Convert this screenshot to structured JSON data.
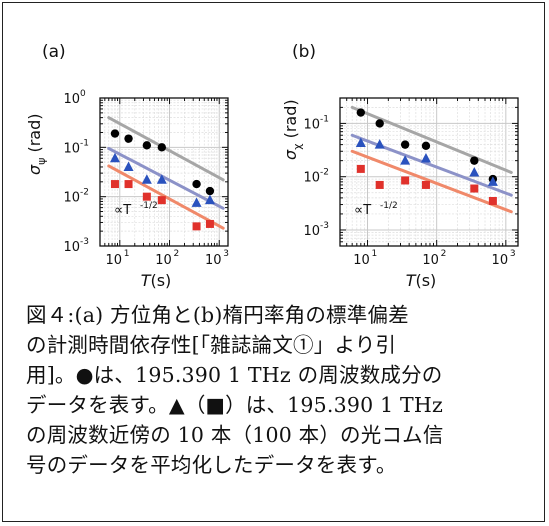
{
  "chart_data": [
    {
      "type": "scatter",
      "panel_label": "(a)",
      "xlabel_var": "T",
      "xlabel_unit": "(s)",
      "ylabel_var": "σ",
      "ylabel_sub": "ψ",
      "ylabel_unit": "(rad)",
      "xscale": "log",
      "yscale": "log",
      "xlim": [
        4,
        1500
      ],
      "ylim": [
        0.001,
        1
      ],
      "x_tick_exponents": [
        1,
        2,
        3
      ],
      "y_tick_exponents": [
        -3,
        -2,
        -1,
        0
      ],
      "grid": true,
      "annotation": {
        "text": "∝T",
        "exponent": "-1/2"
      },
      "series": [
        {
          "marker": "circle",
          "color": "#000000",
          "x": [
            8,
            15,
            35,
            70,
            350,
            650
          ],
          "y": [
            0.19,
            0.15,
            0.11,
            0.1,
            0.018,
            0.013
          ]
        },
        {
          "marker": "triangle",
          "color": "#2a52be",
          "x": [
            8,
            15,
            35,
            70,
            350,
            650
          ],
          "y": [
            0.06,
            0.04,
            0.022,
            0.022,
            0.0075,
            0.0085
          ]
        },
        {
          "marker": "square",
          "color": "#e0312b",
          "x": [
            8,
            15,
            35,
            70,
            350,
            650
          ],
          "y": [
            0.018,
            0.018,
            0.01,
            0.0085,
            0.0025,
            0.0028
          ]
        }
      ],
      "fit_lines": [
        {
          "color": "#a6a6a6",
          "x": [
            6,
            1200
          ],
          "y": [
            0.4,
            0.022
          ]
        },
        {
          "color": "#8c92c8",
          "x": [
            6,
            1200
          ],
          "y": [
            0.095,
            0.0058
          ]
        },
        {
          "color": "#f0896a",
          "x": [
            6,
            1200
          ],
          "y": [
            0.042,
            0.0023
          ]
        }
      ]
    },
    {
      "type": "scatter",
      "panel_label": "(b)",
      "xlabel_var": "T",
      "xlabel_unit": "(s)",
      "ylabel_var": "σ",
      "ylabel_sub": "χ",
      "ylabel_unit": "(rad)",
      "xscale": "log",
      "yscale": "log",
      "xlim": [
        4,
        1500
      ],
      "ylim": [
        0.0005,
        0.3
      ],
      "x_tick_exponents": [
        1,
        2,
        3
      ],
      "y_tick_exponents": [
        -3,
        -2,
        -1
      ],
      "grid": true,
      "annotation": {
        "text": "∝T",
        "exponent": "-1/2"
      },
      "series": [
        {
          "marker": "circle",
          "color": "#000000",
          "x": [
            8,
            15,
            35,
            70,
            350,
            650
          ],
          "y": [
            0.16,
            0.1,
            0.04,
            0.038,
            0.02,
            0.009
          ]
        },
        {
          "marker": "triangle",
          "color": "#2a52be",
          "x": [
            8,
            15,
            35,
            70,
            350,
            650
          ],
          "y": [
            0.043,
            0.04,
            0.02,
            0.022,
            0.012,
            0.008
          ]
        },
        {
          "marker": "square",
          "color": "#e0312b",
          "x": [
            8,
            15,
            35,
            70,
            350,
            650
          ],
          "y": [
            0.014,
            0.007,
            0.0085,
            0.007,
            0.006,
            0.0035
          ]
        }
      ],
      "fit_lines": [
        {
          "color": "#a6a6a6",
          "x": [
            6,
            1200
          ],
          "y": [
            0.2,
            0.012
          ]
        },
        {
          "color": "#8c92c8",
          "x": [
            6,
            1200
          ],
          "y": [
            0.06,
            0.0045
          ]
        },
        {
          "color": "#f0896a",
          "x": [
            6,
            1200
          ],
          "y": [
            0.03,
            0.0022
          ]
        }
      ]
    }
  ],
  "caption": {
    "lines": [
      "図４:(a) 方位角と(b)楕円率角の標準偏差",
      "の計測時間依存性[「雑誌論文①」より引",
      "用]。●は、195.390 1 THz の周波数成分の",
      "データを表す。▲（■）は、195.390 1 THz",
      "の周波数近傍の 10 本（100 本）の光コム信",
      "号のデータを平均化したデータを表す。"
    ]
  }
}
